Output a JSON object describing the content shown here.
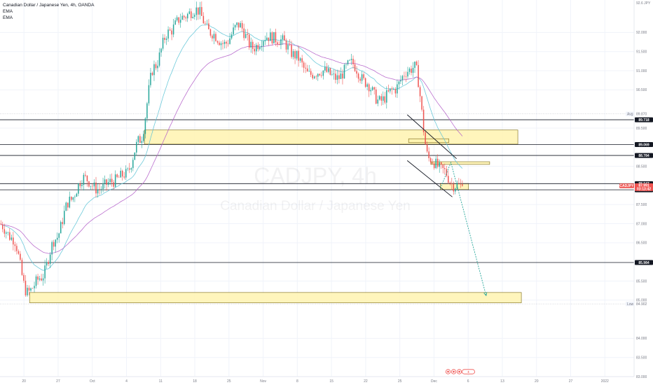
{
  "header": {
    "title": "Canadian Dollar / Japanese Yen, 4h, OANDA",
    "legend": [
      "EMA",
      "EMA"
    ]
  },
  "watermark": {
    "symbol": "CADJPY, 4h",
    "name": "Canadian Dollar / Japanese Yen"
  },
  "colors": {
    "up": "#26a69a",
    "down": "#ef5350",
    "ema_fast": "#5ec4d6",
    "ema_slow": "#b45fc9",
    "zone_fill": "#fff3b0",
    "zone_stroke": "#8a7a2a",
    "level_line": "#131722",
    "projection": "#26a69a",
    "price_badge": "#ef5350"
  },
  "chart_data": {
    "type": "candlestick",
    "symbol": "CADJPY",
    "timeframe": "4h",
    "source": "OANDA",
    "ylim": [
      83.0,
      92.85
    ],
    "xticks": [
      "20",
      "27",
      "Oct",
      "4",
      "11",
      "18",
      "25",
      "Nov",
      "8",
      "15",
      "22",
      "25",
      "Dec",
      "6",
      "13",
      "20",
      "27",
      "2022"
    ],
    "yticks": [
      "92.000",
      "91.500",
      "91.000",
      "90.500",
      "89.500",
      "88.500",
      "87.500",
      "87.000",
      "86.500",
      "85.500",
      "85.000",
      "84.000",
      "83.500",
      "83.000"
    ],
    "anchors": [
      {
        "t": 0.0,
        "v": 87.0
      },
      {
        "t": 2.0,
        "v": 86.6
      },
      {
        "t": 4.0,
        "v": 85.2
      },
      {
        "t": 6.0,
        "v": 85.6
      },
      {
        "t": 8.0,
        "v": 86.6
      },
      {
        "t": 10.0,
        "v": 87.6
      },
      {
        "t": 12.0,
        "v": 88.2
      },
      {
        "t": 14.0,
        "v": 87.9
      },
      {
        "t": 16.0,
        "v": 88.1
      },
      {
        "t": 18.0,
        "v": 88.3
      },
      {
        "t": 20.0,
        "v": 89.2
      },
      {
        "t": 22.0,
        "v": 91.1
      },
      {
        "t": 24.0,
        "v": 92.0
      },
      {
        "t": 26.0,
        "v": 92.4
      },
      {
        "t": 28.0,
        "v": 92.6
      },
      {
        "t": 30.0,
        "v": 92.0
      },
      {
        "t": 32.0,
        "v": 91.7
      },
      {
        "t": 34.0,
        "v": 92.2
      },
      {
        "t": 36.0,
        "v": 91.6
      },
      {
        "t": 38.0,
        "v": 91.9
      },
      {
        "t": 40.0,
        "v": 91.8
      },
      {
        "t": 42.0,
        "v": 91.4
      },
      {
        "t": 44.0,
        "v": 90.9
      },
      {
        "t": 46.0,
        "v": 91.0
      },
      {
        "t": 48.0,
        "v": 90.8
      },
      {
        "t": 50.0,
        "v": 91.2
      },
      {
        "t": 52.0,
        "v": 90.7
      },
      {
        "t": 54.0,
        "v": 90.2
      },
      {
        "t": 56.0,
        "v": 90.5
      },
      {
        "t": 58.0,
        "v": 91.0
      },
      {
        "t": 59.0,
        "v": 91.1
      },
      {
        "t": 61.0,
        "v": 88.7
      },
      {
        "t": 63.0,
        "v": 88.4
      },
      {
        "t": 64.5,
        "v": 88.0
      },
      {
        "t": 65.5,
        "v": 87.99
      }
    ],
    "levels": [
      {
        "label": "89.718",
        "value": 89.718
      },
      {
        "label": "89.069",
        "value": 89.069
      },
      {
        "label": "88.784",
        "value": 88.784
      },
      {
        "label": "88.047",
        "value": 88.047
      },
      {
        "label": "87.886",
        "value": 87.886
      },
      {
        "label": "85.984",
        "value": 85.984
      }
    ],
    "zones": [
      {
        "t0": 20.5,
        "t1": 73.5,
        "top": 89.45,
        "bottom": 89.08
      },
      {
        "t0": 4.2,
        "t1": 74.0,
        "top": 85.2,
        "bottom": 84.93
      },
      {
        "t0": 61.2,
        "t1": 69.5,
        "top": 88.62,
        "bottom": 88.55
      },
      {
        "t0": 62.5,
        "t1": 66.5,
        "top": 88.05,
        "bottom": 87.89
      },
      {
        "t0": 58.0,
        "t1": 63.7,
        "top": 89.22,
        "bottom": 89.12
      }
    ],
    "channel": [
      {
        "t0": 57.8,
        "v0": 89.85,
        "t1": 64.8,
        "v1": 88.7
      },
      {
        "t0": 57.8,
        "v0": 88.65,
        "t1": 64.2,
        "v1": 87.7
      }
    ],
    "projection": [
      {
        "t": 62.5,
        "v": 87.92
      },
      {
        "t": 64.0,
        "v": 88.6
      },
      {
        "t": 69.0,
        "v": 85.12
      }
    ],
    "axis_badges": [
      {
        "label": "Avg",
        "value": "89.870",
        "v": 89.87
      },
      {
        "label": "Low",
        "value": "84.902",
        "v": 84.902
      }
    ],
    "current_price": {
      "label": "CADJPY",
      "value": "87.991",
      "timer": "03:13:42",
      "v": 87.991
    },
    "top_tick_label": "92.6 JPY"
  },
  "event_markers": {
    "icons": [
      "flag-icon",
      "flag-icon",
      "flag-icon"
    ],
    "count_badge": "+"
  }
}
